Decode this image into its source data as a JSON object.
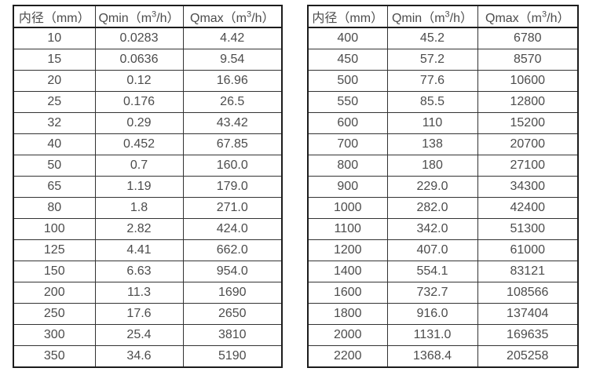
{
  "colors": {
    "background": "#ffffff",
    "text": "#4c4c4c",
    "border_inner": "#333333",
    "border_outer": "#1c1c1c"
  },
  "tables": [
    {
      "name": "flow-spec-table-small-diameters",
      "headers": [
        "内径（mm）",
        "Qmin（m³/h）",
        "Qmax（m³/h）"
      ],
      "rows": [
        [
          "10",
          "0.0283",
          "4.42"
        ],
        [
          "15",
          "0.0636",
          "9.54"
        ],
        [
          "20",
          "0.12",
          "16.96"
        ],
        [
          "25",
          "0.176",
          "26.5"
        ],
        [
          "32",
          "0.29",
          "43.42"
        ],
        [
          "40",
          "0.452",
          "67.85"
        ],
        [
          "50",
          "0.7",
          "160.0"
        ],
        [
          "65",
          "1.19",
          "179.0"
        ],
        [
          "80",
          "1.8",
          "271.0"
        ],
        [
          "100",
          "2.82",
          "424.0"
        ],
        [
          "125",
          "4.41",
          "662.0"
        ],
        [
          "150",
          "6.63",
          "954.0"
        ],
        [
          "200",
          "11.3",
          "1690"
        ],
        [
          "250",
          "17.6",
          "2650"
        ],
        [
          "300",
          "25.4",
          "3810"
        ],
        [
          "350",
          "34.6",
          "5190"
        ]
      ]
    },
    {
      "name": "flow-spec-table-large-diameters",
      "headers": [
        "内径（mm）",
        "Qmin（m³/h）",
        "Qmax（m³/h）"
      ],
      "rows": [
        [
          "400",
          "45.2",
          "6780"
        ],
        [
          "450",
          "57.2",
          "8570"
        ],
        [
          "500",
          "77.6",
          "10600"
        ],
        [
          "550",
          "85.5",
          "12800"
        ],
        [
          "600",
          "110",
          "15200"
        ],
        [
          "700",
          "138",
          "20700"
        ],
        [
          "800",
          "180",
          "27100"
        ],
        [
          "900",
          "229.0",
          "34300"
        ],
        [
          "1000",
          "282.0",
          "42400"
        ],
        [
          "1100",
          "342.0",
          "51300"
        ],
        [
          "1200",
          "407.0",
          "61000"
        ],
        [
          "1400",
          "554.1",
          "83121"
        ],
        [
          "1600",
          "732.7",
          "108566"
        ],
        [
          "1800",
          "916.0",
          "137404"
        ],
        [
          "2000",
          "1131.0",
          "169635"
        ],
        [
          "2200",
          "1368.4",
          "205258"
        ]
      ]
    }
  ]
}
